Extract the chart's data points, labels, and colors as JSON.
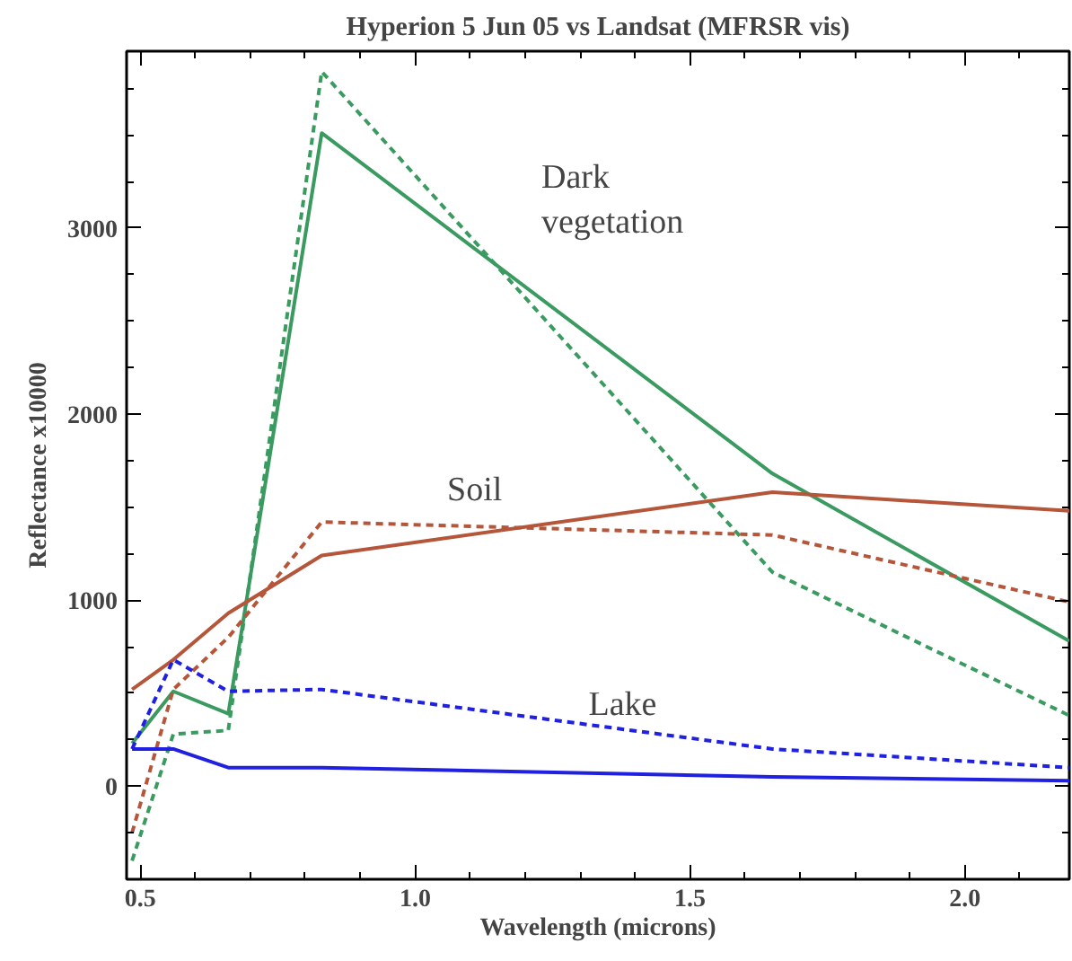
{
  "chart_data": {
    "type": "line",
    "title": "Hyperion 5 Jun 05 vs Landsat (MFRSR vis)",
    "xlabel": "Wavelength (microns)",
    "ylabel": "Reflectance x10000",
    "x": [
      0.485,
      0.56,
      0.66,
      0.83,
      1.65,
      2.19
    ],
    "series": [
      {
        "color": "#3a9a60",
        "line_style": "solid",
        "values": [
          230,
          510,
          390,
          3510,
          1680,
          780
        ]
      },
      {
        "color": "#3a9a60",
        "line_style": "dashed",
        "values": [
          -400,
          280,
          300,
          3840,
          1150,
          380
        ]
      },
      {
        "color": "#b5553a",
        "line_style": "solid",
        "values": [
          520,
          680,
          930,
          1240,
          1580,
          1480
        ]
      },
      {
        "color": "#b5553a",
        "line_style": "dashed",
        "values": [
          -250,
          520,
          800,
          1420,
          1350,
          990
        ]
      },
      {
        "color": "#2020e0",
        "line_style": "solid",
        "values": [
          200,
          200,
          100,
          100,
          50,
          30
        ]
      },
      {
        "color": "#2020e0",
        "line_style": "dashed",
        "values": [
          200,
          680,
          510,
          520,
          200,
          100
        ]
      }
    ],
    "xlim": [
      0.475,
      2.19
    ],
    "ylim": [
      -500,
      3950
    ],
    "xticks": [
      {
        "value": 0.5,
        "label": "0.5"
      },
      {
        "value": 1.0,
        "label": "1.0"
      },
      {
        "value": 1.5,
        "label": "1.5"
      },
      {
        "value": 2.0,
        "label": "2.0"
      }
    ],
    "yticks": [
      0,
      1000,
      2000,
      3000
    ],
    "annotations": [
      "Dark\nvegetation",
      "Soil",
      "Lake"
    ],
    "grid": false,
    "marker": "none"
  }
}
